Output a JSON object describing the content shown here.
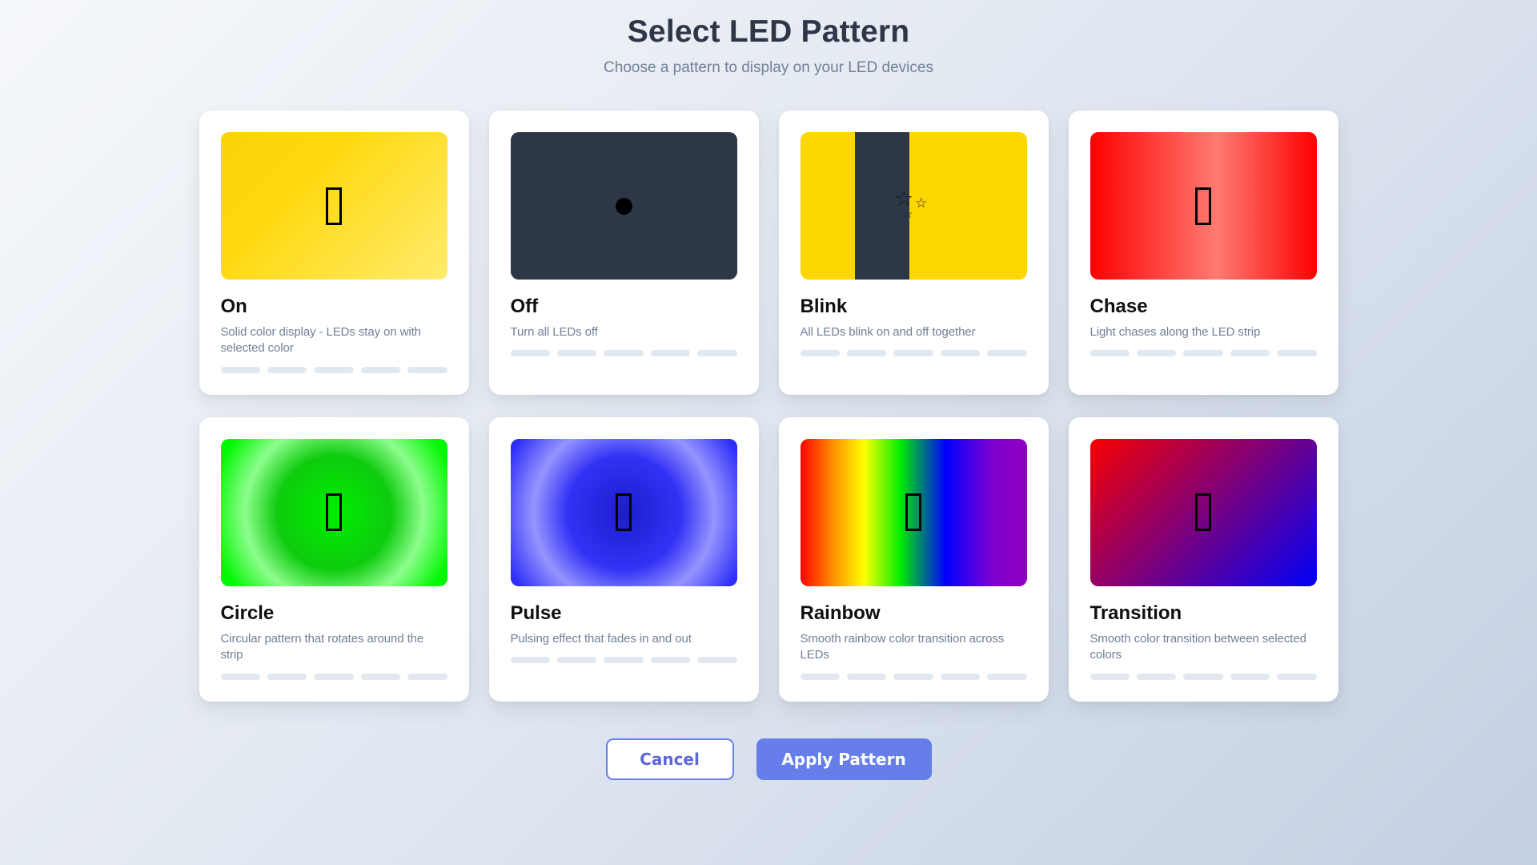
{
  "page": {
    "title": "Select LED Pattern",
    "subtitle": "Choose a pattern to display on your LED devices"
  },
  "patterns": [
    {
      "name": "On",
      "description": "Solid color display - LEDs stay on with selected color",
      "icon": "missing-glyph",
      "colors": [
        "#f8d408",
        "#ffeb6e"
      ]
    },
    {
      "name": "Off",
      "description": "Turn all LEDs off",
      "icon": "black-circle",
      "colors": [
        "#2d3748",
        "#000000"
      ]
    },
    {
      "name": "Blink",
      "description": "All LEDs blink on and off together",
      "icon": "sparkles",
      "colors": [
        "#ffd700",
        "#2d3748"
      ]
    },
    {
      "name": "Chase",
      "description": "Light chases along the LED strip",
      "icon": "missing-glyph",
      "colors": [
        "#fe0000",
        "#ff7b72"
      ]
    },
    {
      "name": "Circle",
      "description": "Circular pattern that rotates around the strip",
      "icon": "missing-glyph",
      "colors": [
        "#00ef00",
        "#8dfd8d"
      ]
    },
    {
      "name": "Pulse",
      "description": "Pulsing effect that fades in and out",
      "icon": "missing-glyph",
      "colors": [
        "#1c1ccd",
        "#9595ff"
      ]
    },
    {
      "name": "Rainbow",
      "description": "Smooth rainbow color transition across LEDs",
      "icon": "missing-glyph",
      "colors": [
        "#ff0000",
        "#ff8c00",
        "#ffff00",
        "#00ee00",
        "#0000ff",
        "#9000c0"
      ]
    },
    {
      "name": "Transition",
      "description": "Smooth color transition between selected colors",
      "icon": "missing-glyph",
      "colors": [
        "#f80000",
        "#0000f8"
      ]
    }
  ],
  "leds_per_card": 5,
  "icons": {
    "star_glyph": "☆"
  },
  "actions": {
    "cancel_label": "Cancel",
    "apply_label": "Apply Pattern"
  },
  "colors": {
    "accent": "#667eea",
    "cancel_text": "#5a67d8",
    "page_bg_start": "#f5f7fa",
    "page_bg_end": "#c3cfe2",
    "heading": "#2d3748",
    "muted_text": "#718096",
    "led_pill": "#e2e8f0",
    "card_bg": "#ffffff",
    "preview_dark": "#2d3748"
  }
}
